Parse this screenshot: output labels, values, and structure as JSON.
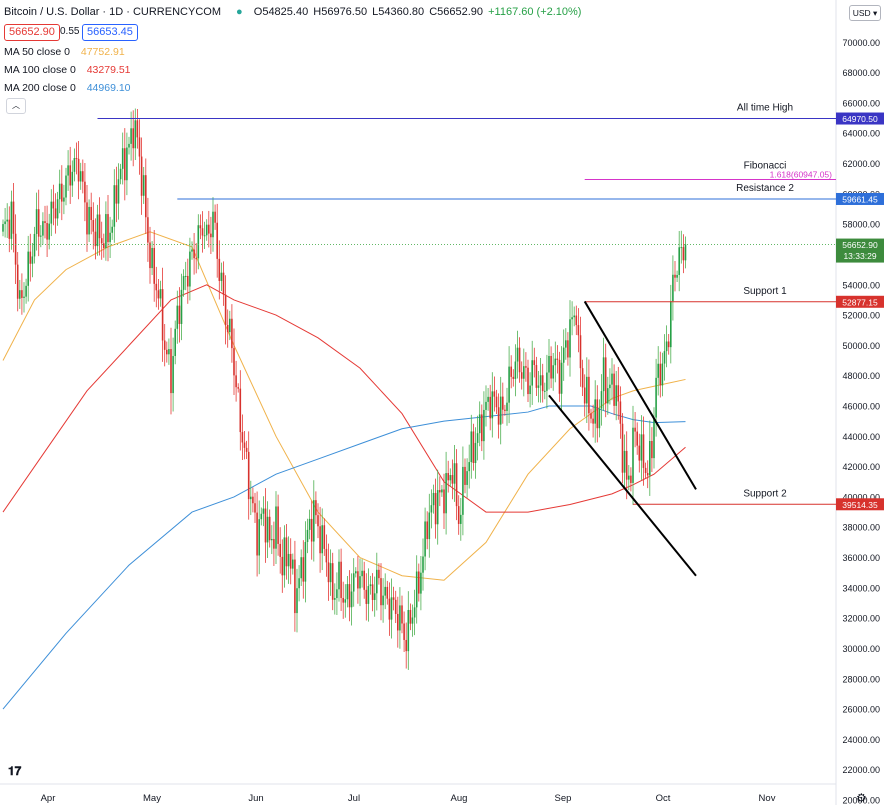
{
  "header": {
    "title": "Bitcoin / U.S. Dollar · 1D · CURRENCYCOM",
    "ohlc": {
      "o": "O54825.40",
      "h": "H56976.50",
      "l": "L54360.80",
      "c": "C56652.90",
      "chg": "+1167.60 (+2.10%)"
    },
    "bid": "56652.90",
    "spread": "0.55",
    "ask": "56653.45"
  },
  "indicators": [
    {
      "label": "MA 50 close 0",
      "value": "47752.91",
      "color": "#f0b24a"
    },
    {
      "label": "MA 100 close 0",
      "value": "43279.51",
      "color": "#e53935"
    },
    {
      "label": "MA 200 close 0",
      "value": "44969.10",
      "color": "#3d8fd8"
    }
  ],
  "currency_button": "USD",
  "colors": {
    "up": "#4caf50",
    "down": "#e53935",
    "up_body": "#26a046",
    "down_body": "#d7322d"
  },
  "chart_data": {
    "type": "candlestick",
    "y_axis": {
      "min": 20000,
      "max": 72000,
      "ticks": [
        20000,
        22000,
        24000,
        26000,
        28000,
        30000,
        32000,
        34000,
        36000,
        38000,
        40000,
        42000,
        44000,
        46000,
        48000,
        50000,
        52000,
        54000,
        56000,
        58000,
        60000,
        62000,
        64000,
        66000,
        68000,
        70000
      ],
      "tick_format": "2dec"
    },
    "x_axis": {
      "labels": [
        "Apr",
        "May",
        "Jun",
        "Jul",
        "Aug",
        "Sep",
        "Oct",
        "Nov"
      ]
    },
    "price_anchors": [
      [
        0,
        57500
      ],
      [
        4,
        58600
      ],
      [
        8,
        52500
      ],
      [
        12,
        55000
      ],
      [
        16,
        58000
      ],
      [
        20,
        57500
      ],
      [
        24,
        59000
      ],
      [
        28,
        60000
      ],
      [
        32,
        61500
      ],
      [
        36,
        62000
      ],
      [
        40,
        58500
      ],
      [
        44,
        57500
      ],
      [
        48,
        57000
      ],
      [
        52,
        58000
      ],
      [
        54,
        60500
      ],
      [
        57,
        62000
      ],
      [
        60,
        63000
      ],
      [
        62,
        64500
      ],
      [
        64,
        63500
      ],
      [
        67,
        60000
      ],
      [
        69,
        57000
      ],
      [
        71,
        55000
      ],
      [
        74,
        53500
      ],
      [
        77,
        50000
      ],
      [
        80,
        48000
      ],
      [
        83,
        52000
      ],
      [
        86,
        54000
      ],
      [
        89,
        55500
      ],
      [
        92,
        56500
      ],
      [
        95,
        58000
      ],
      [
        97,
        57000
      ],
      [
        100,
        58500
      ],
      [
        103,
        55000
      ],
      [
        106,
        52000
      ],
      [
        109,
        50000
      ],
      [
        112,
        46000
      ],
      [
        115,
        43000
      ],
      [
        118,
        40000
      ],
      [
        121,
        37500
      ],
      [
        124,
        39000
      ],
      [
        127,
        37000
      ],
      [
        130,
        38000
      ],
      [
        133,
        35500
      ],
      [
        136,
        36500
      ],
      [
        139,
        33500
      ],
      [
        142,
        35000
      ],
      [
        145,
        37500
      ],
      [
        148,
        39000
      ],
      [
        151,
        37500
      ],
      [
        154,
        36000
      ],
      [
        157,
        33500
      ],
      [
        160,
        34500
      ],
      [
        163,
        33000
      ],
      [
        166,
        34000
      ],
      [
        169,
        35000
      ],
      [
        172,
        34000
      ],
      [
        175,
        33500
      ],
      [
        178,
        34500
      ],
      [
        181,
        33500
      ],
      [
        184,
        33000
      ],
      [
        187,
        32500
      ],
      [
        190,
        31500
      ],
      [
        192,
        30500
      ],
      [
        194,
        32000
      ],
      [
        196,
        33000
      ],
      [
        198,
        34500
      ],
      [
        200,
        36000
      ],
      [
        202,
        38500
      ],
      [
        205,
        39500
      ],
      [
        208,
        40000
      ],
      [
        211,
        40500
      ],
      [
        214,
        42000
      ],
      [
        217,
        38500
      ],
      [
        220,
        41500
      ],
      [
        223,
        43000
      ],
      [
        226,
        44000
      ],
      [
        229,
        45500
      ],
      [
        232,
        46500
      ],
      [
        235,
        46000
      ],
      [
        238,
        45500
      ],
      [
        241,
        47500
      ],
      [
        244,
        49000
      ],
      [
        247,
        48500
      ],
      [
        250,
        47500
      ],
      [
        253,
        48500
      ],
      [
        256,
        47000
      ],
      [
        259,
        48000
      ],
      [
        262,
        49000
      ],
      [
        265,
        48000
      ],
      [
        268,
        50000
      ],
      [
        271,
        51500
      ],
      [
        273,
        52500
      ],
      [
        274,
        49500
      ],
      [
        276,
        47500
      ],
      [
        278,
        46500
      ],
      [
        280,
        45500
      ],
      [
        282,
        45000
      ],
      [
        284,
        46000
      ],
      [
        286,
        48000
      ],
      [
        288,
        47000
      ],
      [
        291,
        47500
      ],
      [
        293,
        46000
      ],
      [
        295,
        43000
      ],
      [
        297,
        41000
      ],
      [
        299,
        42000
      ],
      [
        301,
        44500
      ],
      [
        303,
        43000
      ],
      [
        305,
        42500
      ],
      [
        307,
        41500
      ],
      [
        309,
        43500
      ],
      [
        311,
        47500
      ],
      [
        313,
        48500
      ],
      [
        315,
        49000
      ],
      [
        317,
        51000
      ],
      [
        319,
        54000
      ],
      [
        321,
        55500
      ],
      [
        323,
        56000
      ],
      [
        325,
        56652.9
      ]
    ],
    "series": [
      {
        "name": "MA 50 close 0",
        "color": "#f0b24a",
        "points": [
          [
            0,
            49000
          ],
          [
            15,
            53000
          ],
          [
            30,
            55000
          ],
          [
            50,
            56500
          ],
          [
            70,
            57500
          ],
          [
            90,
            56500
          ],
          [
            110,
            50000
          ],
          [
            130,
            44000
          ],
          [
            150,
            39000
          ],
          [
            170,
            36000
          ],
          [
            190,
            34800
          ],
          [
            210,
            34500
          ],
          [
            230,
            37000
          ],
          [
            250,
            41500
          ],
          [
            270,
            44500
          ],
          [
            290,
            46500
          ],
          [
            300,
            47000
          ],
          [
            310,
            47300
          ],
          [
            325,
            47752.91
          ]
        ]
      },
      {
        "name": "MA 100 close 0",
        "color": "#e53935",
        "points": [
          [
            0,
            39000
          ],
          [
            20,
            43000
          ],
          [
            40,
            47000
          ],
          [
            60,
            50000
          ],
          [
            80,
            53000
          ],
          [
            97,
            54000
          ],
          [
            110,
            53000
          ],
          [
            130,
            52000
          ],
          [
            150,
            50500
          ],
          [
            170,
            48500
          ],
          [
            190,
            45500
          ],
          [
            210,
            41000
          ],
          [
            230,
            39000
          ],
          [
            250,
            39000
          ],
          [
            270,
            39500
          ],
          [
            290,
            40200
          ],
          [
            300,
            40800
          ],
          [
            310,
            41500
          ],
          [
            325,
            43279.51
          ]
        ]
      },
      {
        "name": "MA 200 close 0",
        "color": "#3d8fd8",
        "points": [
          [
            0,
            26000
          ],
          [
            30,
            31000
          ],
          [
            60,
            35500
          ],
          [
            90,
            39000
          ],
          [
            110,
            40000
          ],
          [
            130,
            41500
          ],
          [
            150,
            42500
          ],
          [
            170,
            43500
          ],
          [
            190,
            44500
          ],
          [
            210,
            45000
          ],
          [
            230,
            45300
          ],
          [
            250,
            45600
          ],
          [
            260,
            46000
          ],
          [
            270,
            46000
          ],
          [
            280,
            46000
          ],
          [
            290,
            45500
          ],
          [
            300,
            45100
          ],
          [
            310,
            44900
          ],
          [
            325,
            44969.1
          ]
        ]
      }
    ],
    "horizontal_levels": [
      {
        "label": "All time High",
        "value": 64970.5,
        "price_label": "64970.50",
        "color": "#3a35c4",
        "x_start": 45
      },
      {
        "label": "Fibonacci",
        "value": 60947.05,
        "price_label": "1.618(60947.05)",
        "color": "#d534c9",
        "x_start": 277
      },
      {
        "label": "Resistance 2",
        "value": 59661.45,
        "price_label": "59661.45",
        "color": "#2e6fd9",
        "x_start": 83
      },
      {
        "label": "Support 1",
        "value": 52877.15,
        "price_label": "52877.15",
        "color": "#d7322d",
        "x_start": 277
      },
      {
        "label": "Support 2",
        "value": 39514.35,
        "price_label": "39514.35",
        "color": "#d7322d",
        "x_start": 300
      }
    ],
    "last_price": {
      "value": 56652.9,
      "price_label": "56652.90",
      "countdown": "13:33:29"
    },
    "trendlines": [
      {
        "from": [
          277,
          52900
        ],
        "to": [
          330,
          40500
        ]
      },
      {
        "from": [
          260,
          46700
        ],
        "to": [
          330,
          34800
        ]
      }
    ]
  }
}
